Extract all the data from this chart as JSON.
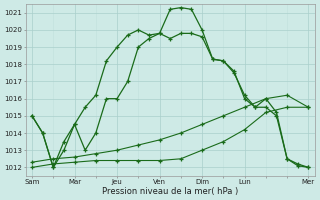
{
  "xlabel": "Pression niveau de la mer( hPa )",
  "bg_color": "#ceeae6",
  "grid_color_major": "#aacfcc",
  "grid_color_minor": "#c0e0dd",
  "line_color": "#1a6b1a",
  "ylim": [
    1011.5,
    1021.5
  ],
  "yticks": [
    1012,
    1013,
    1014,
    1015,
    1016,
    1017,
    1018,
    1019,
    1020,
    1021
  ],
  "day_labels": [
    "Sam",
    "Mar",
    "Jeu",
    "Ven",
    "Dim",
    "Lun",
    "Mer"
  ],
  "day_positions": [
    0,
    2,
    4,
    6,
    8,
    10,
    13
  ],
  "xlim": [
    -0.3,
    13.3
  ],
  "line1_x": [
    0,
    0.5,
    1,
    1.5,
    2,
    2.5,
    3,
    3.5,
    4,
    4.5,
    5,
    5.5,
    6,
    6.5,
    7,
    7.5,
    8,
    8.5,
    9,
    9.5,
    10,
    10.5,
    11,
    11.5,
    12,
    12.5,
    13
  ],
  "line1_y": [
    1015,
    1014,
    1012,
    1013.5,
    1014.5,
    1015.5,
    1016.2,
    1018.2,
    1019.0,
    1019.7,
    1020.0,
    1019.7,
    1019.8,
    1021.2,
    1021.3,
    1021.2,
    1020.0,
    1018.3,
    1018.2,
    1017.6,
    1016.0,
    1015.5,
    1016.0,
    1015.2,
    1012.5,
    1012.1,
    1012.0
  ],
  "line2_x": [
    0,
    0.5,
    1,
    1.5,
    2,
    2.5,
    3,
    3.5,
    4,
    4.5,
    5,
    5.5,
    6,
    6.5,
    7,
    7.5,
    8,
    8.5,
    9,
    9.5,
    10,
    10.5,
    11,
    11.5,
    12,
    12.5,
    13
  ],
  "line2_y": [
    1015,
    1014,
    1012,
    1013,
    1014.5,
    1013.0,
    1014.0,
    1016.0,
    1016.0,
    1017.0,
    1019.0,
    1019.5,
    1019.8,
    1019.5,
    1019.8,
    1019.8,
    1019.6,
    1018.3,
    1018.2,
    1017.5,
    1016.2,
    1015.5,
    1015.5,
    1015.0,
    1012.5,
    1012.2,
    1012.0
  ],
  "line3_x": [
    0,
    1,
    2,
    3,
    4,
    5,
    6,
    7,
    8,
    9,
    10,
    11,
    12,
    13
  ],
  "line3_y": [
    1012.0,
    1012.2,
    1012.3,
    1012.4,
    1012.4,
    1012.4,
    1012.4,
    1012.5,
    1013.0,
    1013.5,
    1014.2,
    1015.2,
    1015.5,
    1015.5
  ],
  "line4_x": [
    0,
    1,
    2,
    3,
    4,
    5,
    6,
    7,
    8,
    9,
    10,
    11,
    12,
    13
  ],
  "line4_y": [
    1012.3,
    1012.5,
    1012.6,
    1012.8,
    1013.0,
    1013.3,
    1013.6,
    1014.0,
    1014.5,
    1015.0,
    1015.5,
    1016.0,
    1016.2,
    1015.5
  ]
}
